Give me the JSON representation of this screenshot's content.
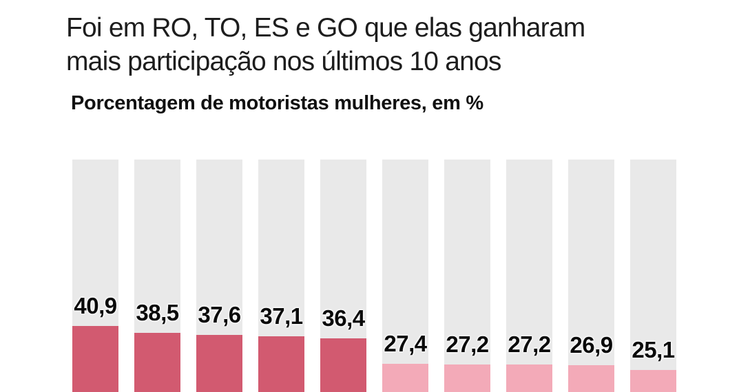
{
  "header": {
    "title_lines": [
      "Foi em RO, TO, ES e GO que elas ganharam",
      "mais participação nos últimos 10 anos"
    ],
    "subtitle": "Porcentagem de motoristas mulheres, em %"
  },
  "chart_data": {
    "type": "bar",
    "title": "Foi em RO, TO, ES e GO que elas ganharam mais participação nos últimos 10 anos",
    "subtitle": "Porcentagem de motoristas mulheres, em %",
    "unit": "%",
    "orientation": "vertical",
    "values": [
      40.9,
      38.5,
      37.6,
      37.1,
      36.4,
      27.4,
      27.2,
      27.2,
      26.9,
      25.1
    ],
    "value_labels": [
      "40,9",
      "38,5",
      "37,6",
      "37,1",
      "36,4",
      "27,4",
      "27,2",
      "27,2",
      "26,9",
      "25,1"
    ],
    "highlighted_bar_count": 5,
    "ylim": [
      0,
      100
    ],
    "track_represents": 100,
    "grid": false,
    "legend": false,
    "x_axis_labels_visible": false,
    "colors": {
      "highlight_bar": "#d25a70",
      "regular_bar": "#f3aab8",
      "track": "#e9e9e9",
      "value_label": "#0a0a0a",
      "title_text": "#1d1d1d",
      "subtitle_text": "#111111",
      "background": "#ffffff"
    }
  }
}
